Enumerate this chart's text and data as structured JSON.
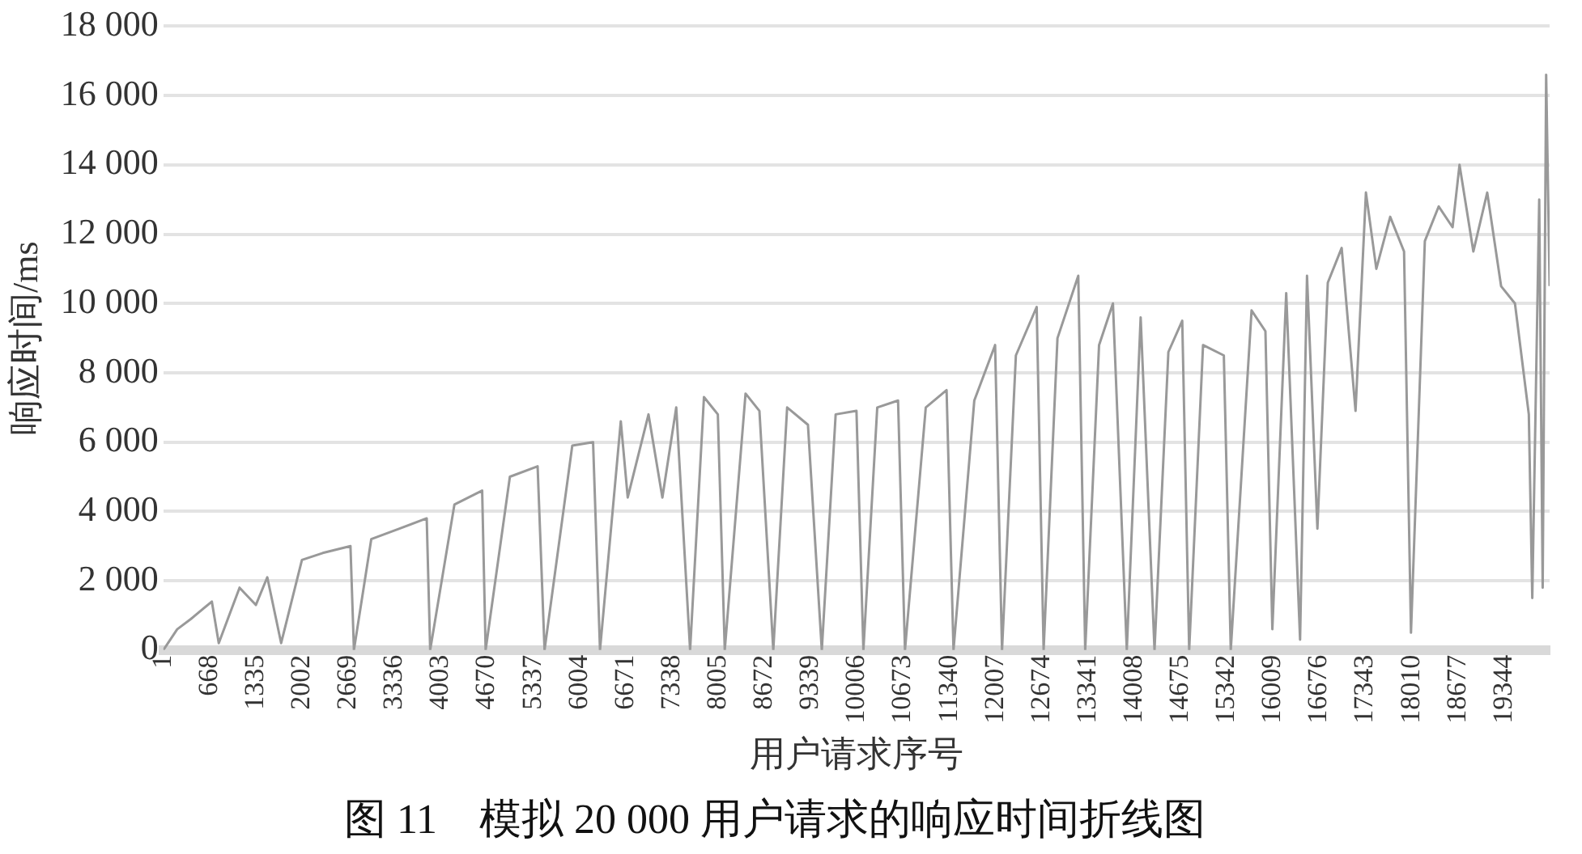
{
  "chart_data": {
    "type": "line",
    "title": "图 11　模拟 20 000 用户请求的响应时间折线图",
    "xlabel": "用户请求序号",
    "ylabel": "响应时间/ms",
    "x": [
      1,
      200,
      400,
      700,
      800,
      1100,
      1335,
      1500,
      1700,
      2000,
      2300,
      2700,
      2750,
      3000,
      3400,
      3800,
      3850,
      4200,
      4600,
      4650,
      5000,
      5400,
      5500,
      5900,
      6200,
      6300,
      6600,
      6700,
      7000,
      7200,
      7400,
      7600,
      7800,
      8000,
      8100,
      8400,
      8600,
      8800,
      9000,
      9300,
      9500,
      9700,
      10000,
      10100,
      10300,
      10600,
      10700,
      11000,
      11300,
      11400,
      11700,
      12000,
      12100,
      12300,
      12600,
      12700,
      12900,
      13200,
      13300,
      13500,
      13700,
      13900,
      14100,
      14300,
      14500,
      14700,
      14800,
      15000,
      15300,
      15400,
      15700,
      15900,
      16000,
      16200,
      16400,
      16500,
      16650,
      16800,
      17000,
      17200,
      17350,
      17500,
      17700,
      17900,
      18000,
      18200,
      18400,
      18600,
      18700,
      18900,
      19100,
      19300,
      19500,
      19700,
      19750,
      19850,
      19900,
      19950,
      20000
    ],
    "series": [
      {
        "color": "#999999",
        "values": [
          0,
          600,
          900,
          1400,
          200,
          1800,
          1300,
          2100,
          200,
          2600,
          2800,
          3000,
          0,
          3200,
          3500,
          3800,
          0,
          4200,
          4600,
          0,
          5000,
          5300,
          0,
          5900,
          6000,
          0,
          6600,
          4400,
          6800,
          4400,
          7000,
          0,
          7300,
          6800,
          0,
          7400,
          6900,
          0,
          7000,
          6500,
          0,
          6800,
          6900,
          0,
          7000,
          7200,
          0,
          7000,
          7500,
          0,
          7200,
          8800,
          0,
          8500,
          9900,
          0,
          9000,
          10800,
          0,
          8800,
          10000,
          0,
          9600,
          0,
          8600,
          9500,
          0,
          8800,
          8500,
          0,
          9800,
          9200,
          600,
          10300,
          300,
          10800,
          3500,
          10600,
          11600,
          6900,
          13200,
          11000,
          12500,
          11500,
          500,
          11800,
          12800,
          12200,
          14000,
          11500,
          13200,
          10500,
          10000,
          6800,
          1500,
          13000,
          1800,
          16600,
          10500
        ]
      }
    ],
    "xlim": [
      1,
      20000
    ],
    "xticks": [
      1,
      668,
      1335,
      2002,
      2669,
      3336,
      4003,
      4670,
      5337,
      6004,
      6671,
      7338,
      8005,
      8672,
      9339,
      10006,
      10673,
      11340,
      12007,
      12674,
      13341,
      14008,
      14675,
      15342,
      16009,
      16676,
      17343,
      18010,
      18677,
      19344
    ],
    "ylim": [
      0,
      18000
    ],
    "yticks": [
      0,
      {
        "value": 2000,
        "label": "2 000"
      },
      {
        "value": 4000,
        "label": "4 000"
      },
      {
        "value": 6000,
        "label": "6 000"
      },
      {
        "value": 8000,
        "label": "8 000"
      },
      {
        "value": 10000,
        "label": "10 000"
      },
      {
        "value": 12000,
        "label": "12 000"
      },
      {
        "value": 14000,
        "label": "14 000"
      },
      {
        "value": 16000,
        "label": "16 000"
      },
      {
        "value": 18000,
        "label": "18 000"
      }
    ],
    "grid": "y",
    "legend": false,
    "marker": "none",
    "line_style": "solid"
  }
}
